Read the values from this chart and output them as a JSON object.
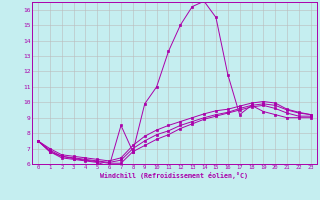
{
  "xlabel": "Windchill (Refroidissement éolien,°C)",
  "xlim": [
    -0.5,
    23.5
  ],
  "ylim": [
    6,
    16.5
  ],
  "xticks": [
    0,
    1,
    2,
    3,
    4,
    5,
    6,
    7,
    8,
    9,
    10,
    11,
    12,
    13,
    14,
    15,
    16,
    17,
    18,
    19,
    20,
    21,
    22,
    23
  ],
  "yticks": [
    6,
    7,
    8,
    9,
    10,
    11,
    12,
    13,
    14,
    15,
    16
  ],
  "background_color": "#c5eef0",
  "line_color": "#aa00aa",
  "grid_color": "#bbbbbb",
  "curves": [
    {
      "x": [
        0,
        1,
        2,
        3,
        4,
        5,
        6,
        7,
        8,
        9,
        10,
        11,
        12,
        13,
        14,
        15,
        16,
        17,
        18,
        19,
        20,
        21,
        22,
        23
      ],
      "y": [
        7.5,
        6.8,
        6.4,
        6.3,
        6.2,
        6.1,
        5.85,
        8.5,
        6.8,
        9.9,
        11.0,
        13.3,
        15.0,
        16.2,
        16.55,
        15.5,
        11.8,
        9.2,
        9.8,
        9.4,
        9.2,
        9.0,
        9.0,
        9.0
      ]
    },
    {
      "x": [
        0,
        1,
        2,
        3,
        4,
        5,
        6,
        7,
        8,
        9,
        10,
        11,
        12,
        13,
        14,
        15,
        16,
        17,
        18,
        19,
        20,
        21,
        22,
        23
      ],
      "y": [
        7.5,
        6.8,
        6.5,
        6.35,
        6.25,
        6.15,
        6.05,
        6.05,
        6.8,
        7.2,
        7.6,
        7.9,
        8.3,
        8.6,
        8.9,
        9.1,
        9.3,
        9.5,
        9.7,
        9.8,
        9.6,
        9.3,
        9.1,
        9.1
      ]
    },
    {
      "x": [
        0,
        1,
        2,
        3,
        4,
        5,
        6,
        7,
        8,
        9,
        10,
        11,
        12,
        13,
        14,
        15,
        16,
        17,
        18,
        19,
        20,
        21,
        22,
        23
      ],
      "y": [
        7.5,
        6.9,
        6.5,
        6.4,
        6.3,
        6.2,
        6.1,
        6.25,
        7.0,
        7.5,
        7.9,
        8.15,
        8.5,
        8.75,
        9.0,
        9.2,
        9.35,
        9.6,
        9.8,
        9.9,
        9.8,
        9.5,
        9.3,
        9.2
      ]
    },
    {
      "x": [
        0,
        1,
        2,
        3,
        4,
        5,
        6,
        7,
        8,
        9,
        10,
        11,
        12,
        13,
        14,
        15,
        16,
        17,
        18,
        19,
        20,
        21,
        22,
        23
      ],
      "y": [
        7.5,
        7.0,
        6.6,
        6.5,
        6.4,
        6.3,
        6.2,
        6.4,
        7.2,
        7.8,
        8.2,
        8.5,
        8.75,
        9.0,
        9.25,
        9.45,
        9.55,
        9.75,
        9.95,
        10.05,
        9.95,
        9.55,
        9.35,
        9.2
      ]
    }
  ]
}
